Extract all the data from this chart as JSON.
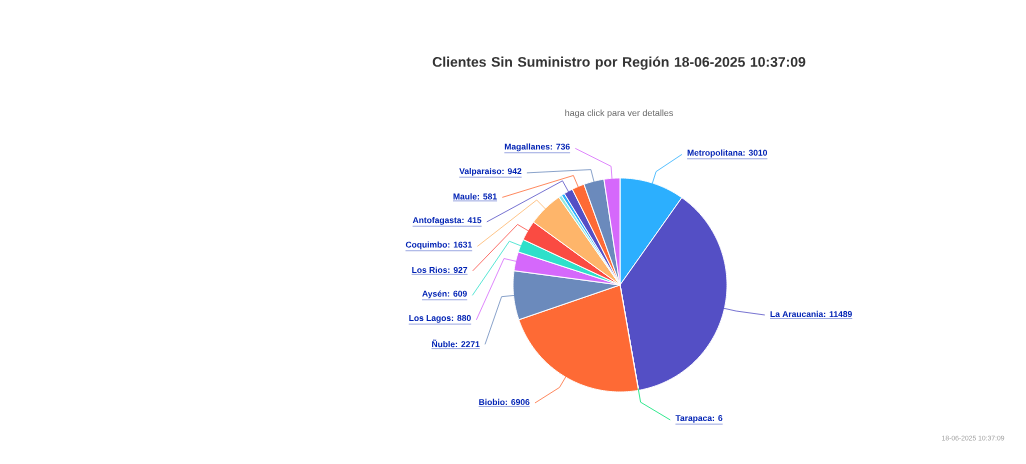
{
  "chart_data": {
    "type": "pie",
    "title": "Clientes Sin Suministro por Región 18-06-2025 10:37:09",
    "subtitle": "haga click para ver detalles",
    "categories": [
      "Metropolitana",
      "La Araucania",
      "Tarapaca",
      "Biobio",
      "Ñuble",
      "Los Lagos",
      "Aysén",
      "Los Rios",
      "Coquimbo",
      null,
      null,
      "Antofagasta",
      "Maule",
      "Valparaiso",
      "Magallanes"
    ],
    "values": [
      3010,
      11489,
      6,
      6906,
      2271,
      880,
      609,
      927,
      1631,
      150,
      150,
      415,
      581,
      942,
      736
    ],
    "value_labels": [
      ": 3010",
      ": 11489",
      ": 6",
      ": 6906",
      ": 2271",
      ": 880",
      ": 609",
      ": 927",
      ": 1631",
      null,
      null,
      ": 415",
      ": 581",
      ": 942",
      ": 736"
    ],
    "colors": [
      "#2caffe",
      "#544fc5",
      "#00e272",
      "#fe6a35",
      "#6b8abc",
      "#d568fb",
      "#2ee0ca",
      "#fa4b42",
      "#feb56a",
      "#91e8e1",
      "#2caffe",
      "#544fc5",
      "#fe6a35",
      "#6b8abc",
      "#d568fb"
    ],
    "annotations": [
      "18-06-2025 10:37:09"
    ]
  }
}
